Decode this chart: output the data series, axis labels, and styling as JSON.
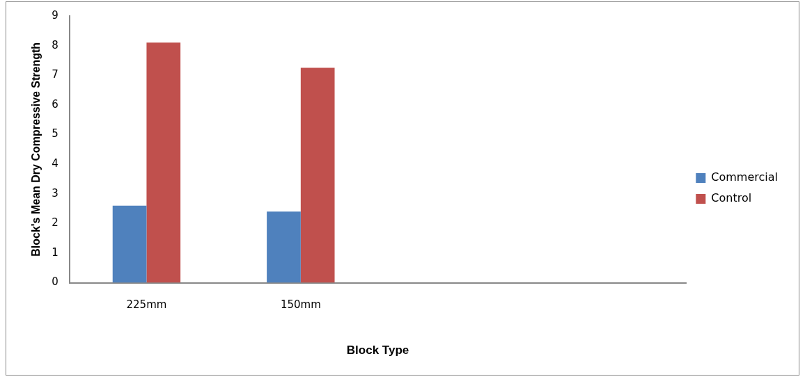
{
  "chart_data": {
    "type": "bar",
    "xlabel": "Block Type",
    "ylabel": "Block's Mean Dry Compressive Strength",
    "categories": [
      "225mm",
      "150mm",
      null,
      null
    ],
    "series": [
      {
        "name": "Commercial",
        "color": "#4f81bd",
        "values": [
          2.6,
          2.4,
          null,
          null
        ]
      },
      {
        "name": "Control",
        "color": "#c0504d",
        "values": [
          8.1,
          7.25,
          null,
          null
        ]
      }
    ],
    "ylim": [
      0,
      9
    ],
    "yticks": [
      0,
      1,
      2,
      3,
      4,
      5,
      6,
      7,
      8,
      9
    ],
    "grid": false,
    "legend": "right"
  }
}
